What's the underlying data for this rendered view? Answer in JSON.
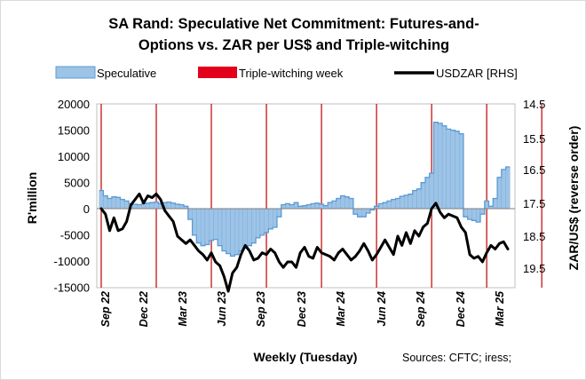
{
  "chart_data": {
    "type": "combo",
    "title_line1": "SA Rand: Speculative Net Commitment: Futures-and-",
    "title_line2": "Options vs. ZAR per US$ and Triple-witching",
    "xlabel": "Weekly (Tuesday)",
    "ylabel_left": "R'million",
    "ylabel_right": "ZAR/US$ (reverse order)",
    "source": "Sources: CFTC; iress;",
    "legend": {
      "placement": "top",
      "speculative": "Speculative",
      "triple": "Triple-witching week",
      "usdzar": "USDZAR [RHS]"
    },
    "colors": {
      "speculative_fill": "#9dc3e6",
      "speculative_edge": "#5b9bd5",
      "triple": "#c00000",
      "usdzar": "#000000"
    },
    "ylim_left": [
      -15000,
      20000
    ],
    "ylim_right_reversed": [
      14.5,
      19.5
    ],
    "yticks_left": [
      "20000",
      "15000",
      "10000",
      "5000",
      "0",
      "-5000",
      "-10000",
      "-15000"
    ],
    "yticks_right": [
      "14.5",
      "15.5",
      "16.5",
      "17.5",
      "18.5",
      "19.5"
    ],
    "xticks": [
      "Sep 22",
      "Dec 22",
      "Mar 23",
      "Jun 23",
      "Sep 23",
      "Dec 23",
      "Mar 24",
      "Jun 24",
      "Sep 24",
      "Dec 24",
      "Mar 25"
    ],
    "triple_witching_week_index": [
      0,
      13,
      26,
      39,
      52,
      65,
      78,
      91,
      104,
      117,
      130
    ],
    "speculative": [
      3500,
      2500,
      2000,
      2300,
      2200,
      1800,
      1500,
      1000,
      900,
      800,
      1000,
      1100,
      1200,
      1300,
      1000,
      1200,
      1300,
      1100,
      900,
      800,
      500,
      -2000,
      -5000,
      -6500,
      -7000,
      -6800,
      -6000,
      -5800,
      -7000,
      -8000,
      -8500,
      -9000,
      -8700,
      -8000,
      -7500,
      -7000,
      -6500,
      -5500,
      -5000,
      -4500,
      -3800,
      -3500,
      -1500,
      800,
      1000,
      800,
      1200,
      500,
      600,
      800,
      1000,
      1100,
      900,
      600,
      1200,
      1500,
      2000,
      2500,
      2300,
      2000,
      -1000,
      -1500,
      -1500,
      -800,
      -200,
      500,
      1000,
      1200,
      1500,
      1800,
      2000,
      2400,
      2600,
      2800,
      3500,
      3800,
      5000,
      6000,
      6800,
      16500,
      16300,
      15800,
      15200,
      15000,
      14800,
      14300,
      -1500,
      -2000,
      -2200,
      -2500,
      -1000,
      1500,
      500,
      2000,
      6000,
      7500,
      8000
    ],
    "usdzar": [
      17.35,
      17.5,
      17.95,
      17.6,
      17.95,
      17.9,
      17.7,
      17.25,
      17.1,
      16.95,
      17.2,
      17.0,
      17.05,
      16.95,
      17.1,
      17.4,
      17.55,
      17.7,
      18.1,
      18.2,
      18.3,
      18.2,
      18.35,
      18.5,
      18.6,
      18.75,
      18.55,
      18.8,
      18.9,
      19.2,
      19.6,
      19.1,
      18.95,
      18.6,
      18.35,
      18.5,
      18.75,
      18.7,
      18.55,
      18.6,
      18.45,
      18.55,
      18.8,
      18.95,
      18.8,
      18.8,
      18.95,
      18.55,
      18.4,
      18.65,
      18.7,
      18.4,
      18.55,
      18.6,
      18.65,
      18.75,
      18.55,
      18.45,
      18.6,
      18.75,
      18.65,
      18.5,
      18.3,
      18.5,
      18.75,
      18.6,
      18.4,
      18.2,
      18.4,
      18.6,
      18.1,
      18.35,
      18.0,
      18.3,
      17.95,
      18.1,
      17.85,
      17.75,
      17.35,
      17.2,
      17.45,
      17.6,
      17.5,
      17.55,
      17.6,
      17.85,
      18.0,
      18.6,
      18.7,
      18.65,
      18.8,
      18.55,
      18.35,
      18.45,
      18.3,
      18.25,
      18.45
    ]
  }
}
